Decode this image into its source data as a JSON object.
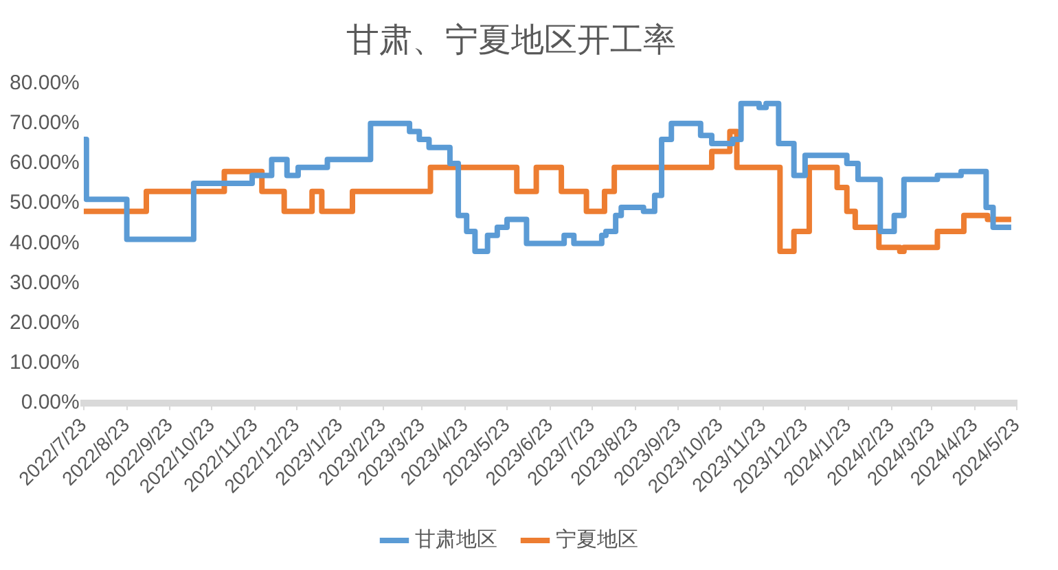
{
  "chart_data": {
    "type": "step",
    "title": "甘肃、宁夏地区开工率",
    "xlim": [
      "2022-07-23",
      "2024-05-23"
    ],
    "xticks": [
      {
        "value": "2022-07-23",
        "label": "2022/7/23"
      },
      {
        "value": "2022-08-23",
        "label": "2022/8/23"
      },
      {
        "value": "2022-09-23",
        "label": "2022/9/23"
      },
      {
        "value": "2022-10-23",
        "label": "2022/10/23"
      },
      {
        "value": "2022-11-23",
        "label": "2022/11/23"
      },
      {
        "value": "2022-12-23",
        "label": "2022/12/23"
      },
      {
        "value": "2023-01-23",
        "label": "2023/1/23"
      },
      {
        "value": "2023-02-23",
        "label": "2023/2/23"
      },
      {
        "value": "2023-03-23",
        "label": "2023/3/23"
      },
      {
        "value": "2023-04-23",
        "label": "2023/4/23"
      },
      {
        "value": "2023-05-23",
        "label": "2023/5/23"
      },
      {
        "value": "2023-06-23",
        "label": "2023/6/23"
      },
      {
        "value": "2023-07-23",
        "label": "2023/7/23"
      },
      {
        "value": "2023-08-23",
        "label": "2023/8/23"
      },
      {
        "value": "2023-09-23",
        "label": "2023/9/23"
      },
      {
        "value": "2023-10-23",
        "label": "2023/10/23"
      },
      {
        "value": "2023-11-23",
        "label": "2023/11/23"
      },
      {
        "value": "2023-12-23",
        "label": "2023/12/23"
      },
      {
        "value": "2024-01-23",
        "label": "2024/1/23"
      },
      {
        "value": "2024-02-23",
        "label": "2024/2/23"
      },
      {
        "value": "2024-03-23",
        "label": "2024/3/23"
      },
      {
        "value": "2024-04-23",
        "label": "2024/4/23"
      },
      {
        "value": "2024-05-23",
        "label": "2024/5/23"
      }
    ],
    "ylim": [
      0,
      80
    ],
    "yticks": [
      {
        "value": 0,
        "label": "0.00%"
      },
      {
        "value": 10,
        "label": "10.00%"
      },
      {
        "value": 20,
        "label": "20.00%"
      },
      {
        "value": 30,
        "label": "30.00%"
      },
      {
        "value": 40,
        "label": "40.00%"
      },
      {
        "value": 50,
        "label": "50.00%"
      },
      {
        "value": 60,
        "label": "60.00%"
      },
      {
        "value": 70,
        "label": "70.00%"
      },
      {
        "value": 80,
        "label": "80.00%"
      }
    ],
    "grid": false,
    "legend": "bottom",
    "series": [
      {
        "name": "甘肃地区",
        "color": "#5b9bd5",
        "x": [
          "2022-07-23",
          "2022-07-25",
          "2022-08-23",
          "2022-10-10",
          "2022-11-21",
          "2022-12-05",
          "2022-12-16",
          "2022-12-24",
          "2023-01-14",
          "2023-02-14",
          "2023-03-14",
          "2023-03-21",
          "2023-03-28",
          "2023-04-12",
          "2023-04-18",
          "2023-04-24",
          "2023-04-30",
          "2023-05-09",
          "2023-05-16",
          "2023-05-23",
          "2023-06-06",
          "2023-07-03",
          "2023-07-10",
          "2023-07-30",
          "2023-08-02",
          "2023-08-09",
          "2023-08-13",
          "2023-08-29",
          "2023-09-06",
          "2023-09-11",
          "2023-09-18",
          "2023-10-09",
          "2023-10-17",
          "2023-11-01",
          "2023-11-07",
          "2023-11-20",
          "2023-11-25",
          "2023-12-04",
          "2023-12-15",
          "2023-12-23",
          "2024-01-22",
          "2024-01-30",
          "2024-02-15",
          "2024-02-25",
          "2024-03-03",
          "2024-03-27",
          "2024-04-13",
          "2024-05-01",
          "2024-05-06",
          "2024-05-19"
        ],
        "values": [
          66,
          51,
          41,
          55,
          57,
          61,
          57,
          59,
          61,
          70,
          68,
          66,
          64,
          60,
          47,
          43,
          38,
          42,
          44,
          46,
          40,
          42,
          40,
          42,
          43,
          47,
          49,
          48,
          52,
          66,
          70,
          67,
          65,
          66,
          75,
          74,
          75,
          65,
          57,
          62,
          60,
          56,
          43,
          47,
          56,
          57,
          58,
          49,
          44,
          44
        ]
      },
      {
        "name": "宁夏地区",
        "color": "#ed7d31",
        "x": [
          "2022-07-23",
          "2022-09-06",
          "2022-11-01",
          "2022-11-28",
          "2022-12-14",
          "2023-01-03",
          "2023-01-10",
          "2023-02-01",
          "2023-03-29",
          "2023-05-30",
          "2023-06-13",
          "2023-07-01",
          "2023-07-19",
          "2023-08-01",
          "2023-08-08",
          "2023-10-17",
          "2023-10-30",
          "2023-11-04",
          "2023-12-05",
          "2023-12-15",
          "2023-12-26",
          "2024-01-15",
          "2024-01-22",
          "2024-01-28",
          "2024-02-14",
          "2024-02-29",
          "2024-03-03",
          "2024-03-27",
          "2024-04-15",
          "2024-05-02",
          "2024-05-19"
        ],
        "values": [
          48,
          53,
          58,
          53,
          48,
          53,
          48,
          53,
          59,
          53,
          59,
          53,
          48,
          53,
          59,
          63,
          68,
          59,
          38,
          43,
          59,
          54,
          48,
          44,
          39,
          38,
          39,
          43,
          47,
          46,
          46
        ]
      }
    ]
  }
}
